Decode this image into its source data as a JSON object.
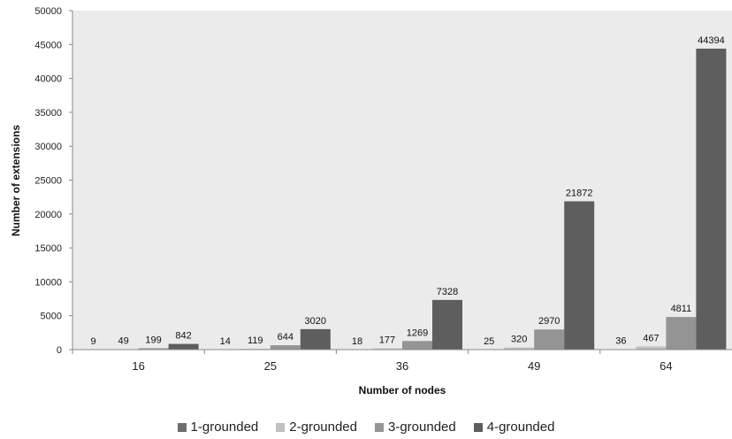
{
  "chart_data": {
    "type": "bar",
    "xlabel": "Number of nodes",
    "ylabel": "Number of extensions",
    "categories": [
      "16",
      "25",
      "36",
      "49",
      "64"
    ],
    "ylim": [
      0,
      50000
    ],
    "yticks": [
      0,
      5000,
      10000,
      15000,
      20000,
      25000,
      30000,
      35000,
      40000,
      45000,
      50000
    ],
    "grid": false,
    "legend_position": "bottom",
    "plot_background": "#ebebeb",
    "series": [
      {
        "name": "1-grounded",
        "color": "#6e6e6e",
        "values": [
          9,
          14,
          18,
          25,
          36
        ]
      },
      {
        "name": "2-grounded",
        "color": "#c0c0c0",
        "values": [
          49,
          119,
          177,
          320,
          467
        ]
      },
      {
        "name": "3-grounded",
        "color": "#949494",
        "values": [
          199,
          644,
          1269,
          2970,
          4811
        ]
      },
      {
        "name": "4-grounded",
        "color": "#5e5e5e",
        "values": [
          842,
          3020,
          7328,
          21872,
          44394
        ]
      }
    ]
  }
}
